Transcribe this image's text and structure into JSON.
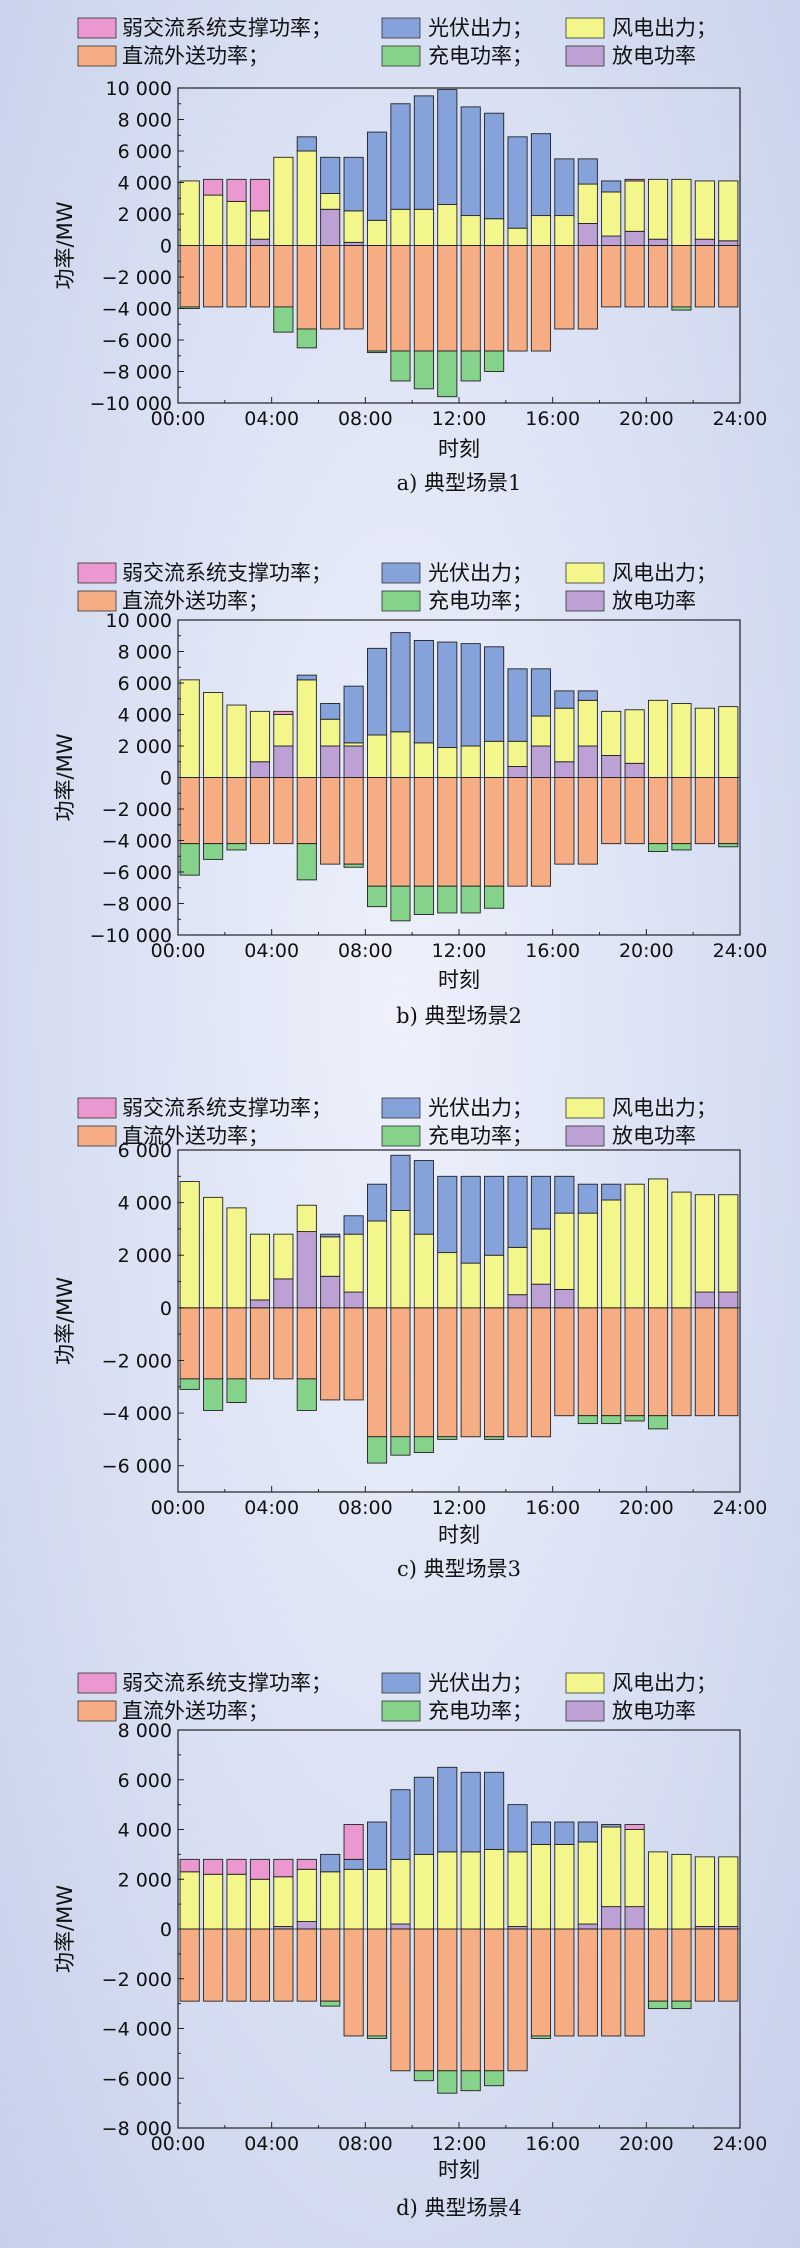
{
  "colors": {
    "weak_ac_support": "#ea98cf",
    "pv": "#86a2da",
    "wind": "#f3f68a",
    "dc_export": "#f6ad84",
    "charge": "#85d38a",
    "discharge": "#bda0d4"
  },
  "chart_data": [
    {
      "type": "bar",
      "stacked": true,
      "caption": "a) 典型场景1",
      "xlabel": "时刻",
      "ylabel": "功率/MW",
      "legend": [
        "弱交流系统支撑功率；",
        "光伏出力；",
        "风电出力；",
        "直流外送功率；",
        "充电功率；",
        "放电功率"
      ],
      "legend_position": "top",
      "ylim": [
        -10000,
        10000
      ],
      "yticks": [
        10000,
        8000,
        6000,
        4000,
        2000,
        0,
        -2000,
        -4000,
        -6000,
        -8000,
        -10000
      ],
      "ytick_labels": [
        "10 000",
        "8 000",
        "6 000",
        "4 000",
        "2 000",
        "0",
        "−2 000",
        "−4 000",
        "−6 000",
        "−8 000",
        "−10 000"
      ],
      "xlim": [
        0,
        24
      ],
      "xticks": [
        0,
        4,
        8,
        12,
        16,
        20,
        24
      ],
      "xtick_labels": [
        "00:00",
        "04:00",
        "08:00",
        "12:00",
        "16:00",
        "20:00",
        "24:00"
      ],
      "grid": false,
      "x": [
        1,
        2,
        3,
        4,
        5,
        6,
        7,
        8,
        9,
        10,
        11,
        12,
        13,
        14,
        15,
        16,
        17,
        18,
        19,
        20,
        21,
        22,
        23,
        24
      ],
      "series": [
        {
          "key": "discharge",
          "name": "放电功率",
          "values": [
            0,
            0,
            0,
            400,
            0,
            0,
            2300,
            200,
            0,
            0,
            0,
            0,
            0,
            0,
            0,
            0,
            0,
            1400,
            600,
            900,
            400,
            0,
            400,
            300
          ]
        },
        {
          "key": "wind",
          "name": "风电出力",
          "values": [
            4100,
            3200,
            2800,
            1800,
            5600,
            6000,
            1000,
            2000,
            1600,
            2300,
            2300,
            2600,
            1900,
            1700,
            1100,
            1900,
            1900,
            2500,
            2800,
            3200,
            3800,
            4200,
            3700,
            3800
          ]
        },
        {
          "key": "pv",
          "name": "光伏出力",
          "values": [
            0,
            0,
            0,
            0,
            0,
            900,
            2300,
            3400,
            5600,
            6700,
            7200,
            7300,
            6900,
            6700,
            5800,
            5200,
            3600,
            1600,
            700,
            0,
            0,
            0,
            0,
            0
          ]
        },
        {
          "key": "weak_ac_support",
          "name": "弱交流系统支撑功率",
          "values": [
            0,
            1000,
            1400,
            2000,
            0,
            0,
            0,
            0,
            0,
            0,
            0,
            0,
            0,
            0,
            0,
            0,
            0,
            0,
            0,
            100,
            0,
            0,
            0,
            0
          ]
        },
        {
          "key": "dc_export",
          "name": "直流外送功率",
          "values": [
            -3900,
            -3900,
            -3900,
            -3900,
            -3900,
            -5300,
            -5300,
            -5300,
            -6700,
            -6700,
            -6700,
            -6700,
            -6700,
            -6700,
            -6700,
            -6700,
            -5300,
            -5300,
            -3900,
            -3900,
            -3900,
            -3900,
            -3900,
            -3900
          ]
        },
        {
          "key": "charge",
          "name": "充电功率",
          "values": [
            -100,
            0,
            0,
            0,
            -1600,
            -1200,
            0,
            0,
            -100,
            -1900,
            -2400,
            -2900,
            -1900,
            -1300,
            0,
            0,
            0,
            0,
            0,
            0,
            0,
            -200,
            0,
            0
          ]
        }
      ]
    },
    {
      "type": "bar",
      "stacked": true,
      "caption": "b) 典型场景2",
      "xlabel": "时刻",
      "ylabel": "功率/MW",
      "legend": [
        "弱交流系统支撑功率；",
        "光伏出力；",
        "风电出力；",
        "直流外送功率；",
        "充电功率；",
        "放电功率"
      ],
      "legend_position": "top",
      "ylim": [
        -10000,
        10000
      ],
      "yticks": [
        10000,
        8000,
        6000,
        4000,
        2000,
        0,
        -2000,
        -4000,
        -6000,
        -8000,
        -10000
      ],
      "ytick_labels": [
        "10 000",
        "8 000",
        "6 000",
        "4 000",
        "2 000",
        "0",
        "−2 000",
        "−4 000",
        "−6 000",
        "−8 000",
        "−10 000"
      ],
      "xlim": [
        0,
        24
      ],
      "xticks": [
        0,
        4,
        8,
        12,
        16,
        20,
        24
      ],
      "xtick_labels": [
        "00:00",
        "04:00",
        "08:00",
        "12:00",
        "16:00",
        "20:00",
        "24:00"
      ],
      "grid": false,
      "x": [
        1,
        2,
        3,
        4,
        5,
        6,
        7,
        8,
        9,
        10,
        11,
        12,
        13,
        14,
        15,
        16,
        17,
        18,
        19,
        20,
        21,
        22,
        23,
        24
      ],
      "series": [
        {
          "key": "discharge",
          "name": "放电功率",
          "values": [
            0,
            0,
            0,
            1000,
            2000,
            0,
            2000,
            2000,
            0,
            0,
            0,
            0,
            0,
            0,
            700,
            2000,
            1000,
            2000,
            1400,
            900,
            0,
            0,
            0,
            0
          ]
        },
        {
          "key": "wind",
          "name": "风电出力",
          "values": [
            6200,
            5400,
            4600,
            3200,
            2000,
            6200,
            1700,
            200,
            2700,
            2900,
            2200,
            1900,
            2000,
            2300,
            1600,
            1900,
            3400,
            2900,
            2800,
            3400,
            4900,
            4700,
            4400,
            4500
          ]
        },
        {
          "key": "pv",
          "name": "光伏出力",
          "values": [
            0,
            0,
            0,
            0,
            0,
            300,
            1000,
            3600,
            5500,
            6300,
            6500,
            6700,
            6500,
            6000,
            4600,
            3000,
            1100,
            600,
            0,
            0,
            0,
            0,
            0,
            0
          ]
        },
        {
          "key": "weak_ac_support",
          "name": "弱交流系统支撑功率",
          "values": [
            0,
            0,
            0,
            0,
            200,
            0,
            0,
            0,
            0,
            0,
            0,
            0,
            0,
            0,
            0,
            0,
            0,
            0,
            0,
            0,
            0,
            0,
            0,
            0
          ]
        },
        {
          "key": "dc_export",
          "name": "直流外送功率",
          "values": [
            -4200,
            -4200,
            -4200,
            -4200,
            -4200,
            -4200,
            -5500,
            -5500,
            -6900,
            -6900,
            -6900,
            -6900,
            -6900,
            -6900,
            -6900,
            -6900,
            -5500,
            -5500,
            -4200,
            -4200,
            -4200,
            -4200,
            -4200,
            -4200
          ]
        },
        {
          "key": "charge",
          "name": "充电功率",
          "values": [
            -2000,
            -1000,
            -400,
            0,
            0,
            -2300,
            0,
            -200,
            -1300,
            -2200,
            -1800,
            -1700,
            -1700,
            -1400,
            0,
            0,
            0,
            0,
            0,
            0,
            -500,
            -400,
            0,
            -200
          ]
        }
      ]
    },
    {
      "type": "bar",
      "stacked": true,
      "caption": "c) 典型场景3",
      "xlabel": "时刻",
      "ylabel": "功率/MW",
      "legend": [
        "弱交流系统支撑功率；",
        "光伏出力；",
        "风电出力；",
        "直流外送功率；",
        "充电功率；",
        "放电功率"
      ],
      "legend_position": "top",
      "ylim": [
        -7000,
        6000
      ],
      "yticks": [
        6000,
        4000,
        2000,
        0,
        -2000,
        -4000,
        -6000
      ],
      "ytick_labels": [
        "6 000",
        "4 000",
        "2 000",
        "0",
        "−2 000",
        "−4 000",
        "−6 000"
      ],
      "xlim": [
        0,
        24
      ],
      "xticks": [
        0,
        4,
        8,
        12,
        16,
        20,
        24
      ],
      "xtick_labels": [
        "00:00",
        "04:00",
        "08:00",
        "12:00",
        "16:00",
        "20:00",
        "24:00"
      ],
      "grid": false,
      "x": [
        1,
        2,
        3,
        4,
        5,
        6,
        7,
        8,
        9,
        10,
        11,
        12,
        13,
        14,
        15,
        16,
        17,
        18,
        19,
        20,
        21,
        22,
        23,
        24
      ],
      "series": [
        {
          "key": "discharge",
          "name": "放电功率",
          "values": [
            0,
            0,
            0,
            300,
            1100,
            2900,
            1200,
            600,
            0,
            0,
            0,
            0,
            0,
            0,
            500,
            900,
            700,
            0,
            0,
            0,
            0,
            0,
            600,
            600
          ]
        },
        {
          "key": "wind",
          "name": "风电出力",
          "values": [
            4800,
            4200,
            3800,
            2500,
            1700,
            1000,
            1500,
            2200,
            3300,
            3700,
            2800,
            2100,
            1700,
            2000,
            1800,
            2100,
            2900,
            3600,
            4100,
            4700,
            4900,
            4400,
            3700,
            3700
          ]
        },
        {
          "key": "pv",
          "name": "光伏出力",
          "values": [
            0,
            0,
            0,
            0,
            0,
            0,
            100,
            700,
            1400,
            2100,
            2800,
            2900,
            3300,
            3000,
            2700,
            2000,
            1400,
            1100,
            600,
            0,
            0,
            0,
            0,
            0
          ]
        },
        {
          "key": "weak_ac_support",
          "name": "弱交流系统支撑功率",
          "values": [
            0,
            0,
            0,
            0,
            0,
            0,
            0,
            0,
            0,
            0,
            0,
            0,
            0,
            0,
            0,
            0,
            0,
            0,
            0,
            0,
            0,
            0,
            0,
            0
          ]
        },
        {
          "key": "dc_export",
          "name": "直流外送功率",
          "values": [
            -2700,
            -2700,
            -2700,
            -2700,
            -2700,
            -2700,
            -3500,
            -3500,
            -4900,
            -4900,
            -4900,
            -4900,
            -4900,
            -4900,
            -4900,
            -4900,
            -4100,
            -4100,
            -4100,
            -4100,
            -4100,
            -4100,
            -4100,
            -4100
          ]
        },
        {
          "key": "charge",
          "name": "充电功率",
          "values": [
            -400,
            -1200,
            -900,
            0,
            0,
            -1200,
            0,
            0,
            -1000,
            -700,
            -600,
            -100,
            0,
            -100,
            0,
            0,
            0,
            -300,
            -300,
            -200,
            -500,
            0,
            0,
            0
          ]
        }
      ]
    },
    {
      "type": "bar",
      "stacked": true,
      "caption": "d) 典型场景4",
      "xlabel": "时刻",
      "ylabel": "功率/MW",
      "legend": [
        "弱交流系统支撑功率；",
        "光伏出力；",
        "风电出力；",
        "直流外送功率；",
        "充电功率；",
        "放电功率"
      ],
      "legend_position": "top",
      "ylim": [
        -8000,
        8000
      ],
      "yticks": [
        8000,
        6000,
        4000,
        2000,
        0,
        -2000,
        -4000,
        -6000,
        -8000
      ],
      "ytick_labels": [
        "8 000",
        "6 000",
        "4 000",
        "2 000",
        "0",
        "−2 000",
        "−4 000",
        "−6 000",
        "−8 000"
      ],
      "xlim": [
        0,
        24
      ],
      "xticks": [
        0,
        4,
        8,
        12,
        16,
        20,
        24
      ],
      "xtick_labels": [
        "00:00",
        "04:00",
        "08:00",
        "12:00",
        "16:00",
        "20:00",
        "24:00"
      ],
      "grid": false,
      "x": [
        1,
        2,
        3,
        4,
        5,
        6,
        7,
        8,
        9,
        10,
        11,
        12,
        13,
        14,
        15,
        16,
        17,
        18,
        19,
        20,
        21,
        22,
        23,
        24
      ],
      "series": [
        {
          "key": "discharge",
          "name": "放电功率",
          "values": [
            0,
            0,
            0,
            0,
            100,
            300,
            0,
            0,
            0,
            200,
            0,
            0,
            0,
            0,
            100,
            0,
            0,
            200,
            900,
            900,
            0,
            0,
            100,
            100
          ]
        },
        {
          "key": "wind",
          "name": "风电出力",
          "values": [
            2300,
            2200,
            2200,
            2000,
            2000,
            2100,
            2300,
            2400,
            2400,
            2600,
            3000,
            3100,
            3100,
            3200,
            3000,
            3400,
            3400,
            3300,
            3200,
            3100,
            3100,
            3000,
            2800,
            2800
          ]
        },
        {
          "key": "pv",
          "name": "光伏出力",
          "values": [
            0,
            0,
            0,
            0,
            0,
            0,
            700,
            400,
            1900,
            2800,
            3100,
            3400,
            3200,
            3100,
            1900,
            900,
            900,
            800,
            100,
            0,
            0,
            0,
            0,
            0
          ]
        },
        {
          "key": "weak_ac_support",
          "name": "弱交流系统支撑功率",
          "values": [
            500,
            600,
            600,
            800,
            700,
            400,
            0,
            1400,
            0,
            0,
            0,
            0,
            0,
            0,
            0,
            0,
            0,
            0,
            0,
            200,
            0,
            0,
            0,
            0
          ]
        },
        {
          "key": "dc_export",
          "name": "直流外送功率",
          "values": [
            -2900,
            -2900,
            -2900,
            -2900,
            -2900,
            -2900,
            -2900,
            -4300,
            -4300,
            -5700,
            -5700,
            -5700,
            -5700,
            -5700,
            -5700,
            -4300,
            -4300,
            -4300,
            -4300,
            -4300,
            -2900,
            -2900,
            -2900,
            -2900
          ]
        },
        {
          "key": "charge",
          "name": "充电功率",
          "values": [
            0,
            0,
            0,
            0,
            0,
            0,
            -200,
            0,
            -100,
            0,
            -400,
            -900,
            -800,
            -600,
            0,
            -100,
            0,
            0,
            0,
            0,
            -300,
            -300,
            0,
            0
          ]
        }
      ]
    }
  ]
}
